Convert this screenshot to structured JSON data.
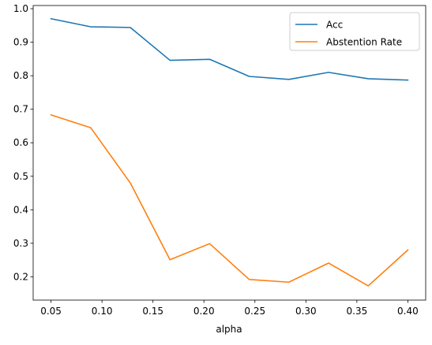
{
  "chart_data": {
    "type": "line",
    "title": "",
    "xlabel": "alpha",
    "ylabel": "",
    "xlim": [
      0.0325,
      0.4175
    ],
    "ylim": [
      0.1305,
      1.0095
    ],
    "xticks": [
      0.05,
      0.1,
      0.15,
      0.2,
      0.25,
      0.3,
      0.35,
      0.4
    ],
    "xtick_labels": [
      "0.05",
      "0.10",
      "0.15",
      "0.20",
      "0.25",
      "0.30",
      "0.35",
      "0.40"
    ],
    "yticks": [
      0.2,
      0.3,
      0.4,
      0.5,
      0.6,
      0.7,
      0.8,
      0.9,
      1.0
    ],
    "ytick_labels": [
      "0.2",
      "0.3",
      "0.4",
      "0.5",
      "0.6",
      "0.7",
      "0.8",
      "0.9",
      "1.0"
    ],
    "grid": false,
    "legend_position": "top-right",
    "x": [
      0.05,
      0.0889,
      0.1278,
      0.1667,
      0.2056,
      0.2444,
      0.2833,
      0.3222,
      0.3611,
      0.4
    ],
    "series": [
      {
        "name": "Acc",
        "color": "#1f77b4",
        "values": [
          0.97,
          0.946,
          0.944,
          0.846,
          0.849,
          0.798,
          0.789,
          0.81,
          0.791,
          0.787
        ]
      },
      {
        "name": "Abstention Rate",
        "color": "#ff7f0e",
        "values": [
          0.683,
          0.645,
          0.48,
          0.251,
          0.299,
          0.192,
          0.184,
          0.241,
          0.173,
          0.28
        ]
      }
    ]
  }
}
